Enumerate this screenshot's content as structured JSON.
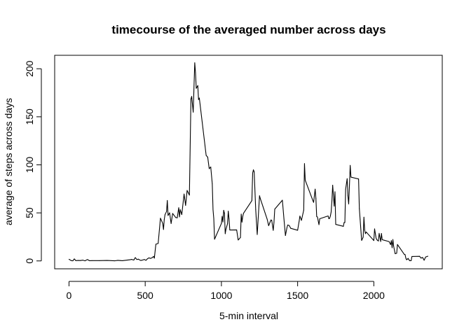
{
  "chart_data": {
    "type": "line",
    "title": "timecourse of the averaged number across days",
    "xlabel": "5-min interval",
    "ylabel": "average of steps across days",
    "xlim": [
      -94,
      2449
    ],
    "ylim": [
      -8.2,
      214
    ],
    "xticks": [
      0,
      500,
      1000,
      1500,
      2000
    ],
    "yticks": [
      0,
      50,
      100,
      150,
      200
    ],
    "grid": false,
    "legend": "none",
    "series_color": "#000000",
    "series": [
      {
        "x": [
          0,
          15,
          25,
          35,
          45,
          60,
          75,
          90,
          105,
          120,
          125,
          135,
          150,
          200,
          250,
          300,
          320,
          335,
          350,
          400,
          410,
          425,
          430,
          435,
          445,
          455,
          470,
          480,
          495,
          505,
          515,
          525,
          535,
          545,
          555,
          560,
          570,
          585,
          600,
          615,
          620,
          625,
          630,
          640,
          645,
          650,
          660,
          670,
          680,
          700,
          710,
          720,
          725,
          730,
          740,
          755,
          765,
          775,
          790,
          800,
          805,
          815,
          825,
          830,
          835,
          845,
          850,
          855,
          900,
          910,
          920,
          930,
          940,
          945,
          950,
          955,
          1000,
          1005,
          1010,
          1015,
          1020,
          1025,
          1030,
          1040,
          1045,
          1050,
          1055,
          1100,
          1110,
          1125,
          1130,
          1135,
          1140,
          1145,
          1200,
          1205,
          1210,
          1215,
          1225,
          1235,
          1250,
          1255,
          1300,
          1310,
          1320,
          1325,
          1330,
          1340,
          1345,
          1350,
          1400,
          1410,
          1420,
          1430,
          1435,
          1445,
          1455,
          1500,
          1510,
          1515,
          1525,
          1540,
          1545,
          1550,
          1600,
          1605,
          1615,
          1620,
          1625,
          1630,
          1640,
          1645,
          1700,
          1705,
          1710,
          1715,
          1720,
          1725,
          1730,
          1740,
          1745,
          1750,
          1800,
          1805,
          1810,
          1815,
          1825,
          1830,
          1835,
          1840,
          1845,
          1850,
          1900,
          1905,
          1910,
          1920,
          1930,
          1935,
          1940,
          1945,
          1950,
          2000,
          2005,
          2015,
          2020,
          2030,
          2035,
          2045,
          2050,
          2055,
          2100,
          2110,
          2115,
          2120,
          2125,
          2130,
          2140,
          2150,
          2155,
          2200,
          2205,
          2210,
          2215,
          2225,
          2235,
          2245,
          2250,
          2300,
          2310,
          2320,
          2330,
          2340,
          2355
        ],
        "values": [
          1.7,
          0.3,
          0.1,
          2.1,
          0.3,
          0.5,
          0.4,
          0.8,
          0.1,
          1.4,
          1.1,
          0.2,
          0.3,
          0.3,
          0.5,
          0.1,
          0.6,
          0.4,
          0.2,
          1.2,
          1.6,
          0.9,
          2.1,
          3.5,
          1.5,
          1.8,
          0.5,
          0.8,
          1.5,
          0.6,
          2.3,
          3.2,
          2.6,
          3.3,
          4.7,
          2.9,
          17.4,
          18.2,
          44.5,
          39,
          32.7,
          43,
          48.2,
          51.4,
          62.9,
          47.3,
          50.1,
          38.9,
          49.4,
          45.2,
          44.8,
          55.4,
          45.8,
          53.3,
          48.2,
          69.6,
          57.8,
          73.4,
          68.5,
          168.5,
          171.2,
          154.8,
          206.2,
          195.9,
          179.6,
          182.5,
          167.9,
          169.6,
          109.8,
          108,
          96,
          97.8,
          80.3,
          53.3,
          44,
          22.6,
          39,
          46.5,
          40.5,
          52.7,
          49.6,
          28.3,
          33.2,
          38.6,
          51.8,
          43.7,
          32.2,
          32.3,
          21.8,
          24.4,
          48.7,
          40.4,
          46.3,
          49.6,
          62.8,
          91.5,
          94.8,
          92.7,
          53.5,
          27.4,
          67.8,
          65,
          43.5,
          36.7,
          40.8,
          42.6,
          42.3,
          31.8,
          40.4,
          53.9,
          63.2,
          44.3,
          26.4,
          34.6,
          37.4,
          36.8,
          33.9,
          31.9,
          41.3,
          46.7,
          42.2,
          52.8,
          101.3,
          84,
          62.8,
          60.9,
          74.7,
          65,
          46.3,
          45.7,
          37.7,
          43.9,
          46.8,
          43.9,
          44.4,
          46.8,
          51,
          62.5,
          78.8,
          57,
          72,
          38,
          36,
          40,
          40,
          74.7,
          85.6,
          67.8,
          59.3,
          78.7,
          99.4,
          87.2,
          85.3,
          54.4,
          43.4,
          21.3,
          24.7,
          45.5,
          32.1,
          28.4,
          30.1,
          21.2,
          33.4,
          23.5,
          22,
          20.7,
          28.7,
          20.2,
          28.6,
          22.1,
          20.1,
          17,
          21.1,
          13.7,
          22.3,
          15.3,
          7.5,
          8,
          17.1,
          6.8,
          6.6,
          2.9,
          1.2,
          2.6,
          0.2,
          0.3,
          4.6,
          4.8,
          2.9,
          3.6,
          0.7,
          4.1,
          4.9
        ]
      }
    ]
  }
}
